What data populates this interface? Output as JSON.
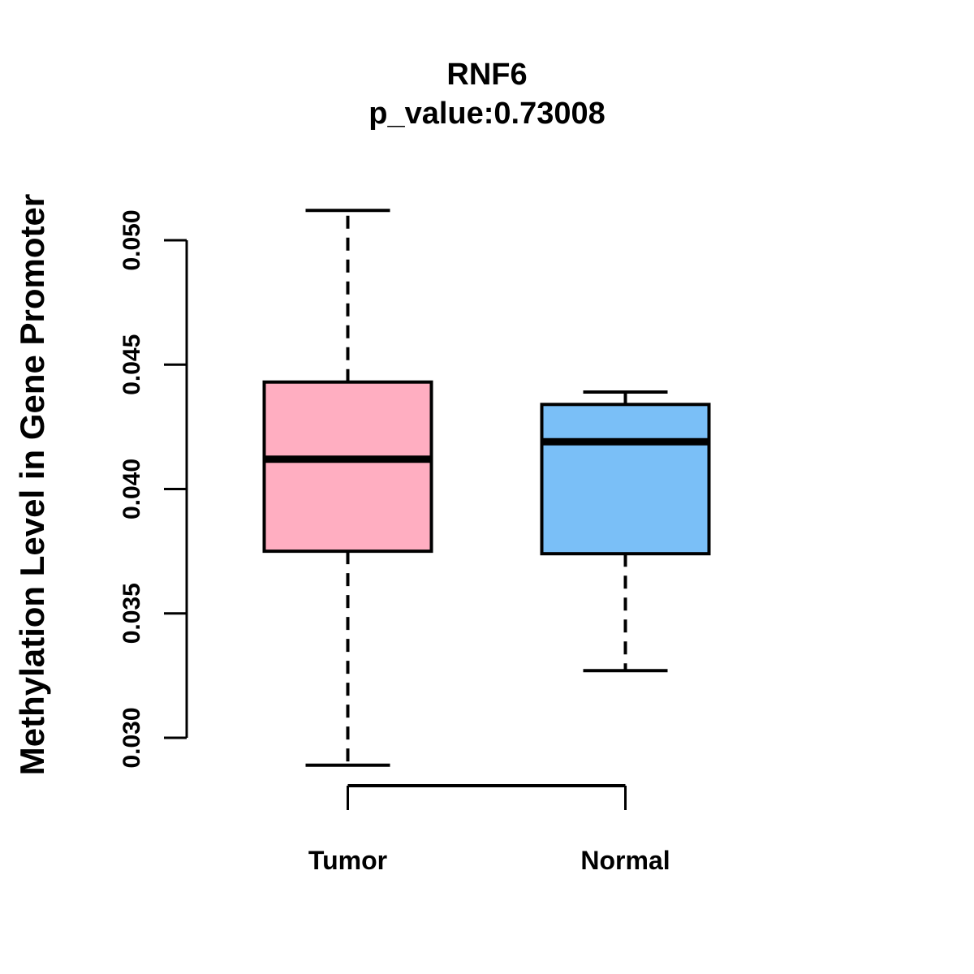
{
  "chart_data": {
    "type": "box",
    "title": "RNF6",
    "subtitle": "p_value:0.73008",
    "ylabel": "Methylation Level in Gene Promoter",
    "xlabel": "",
    "categories": [
      "Tumor",
      "Normal"
    ],
    "y_tick_labels": [
      "0.030",
      "0.035",
      "0.040",
      "0.045",
      "0.050"
    ],
    "y_axis_range": [
      0.03,
      0.05
    ],
    "grid": false,
    "legend": "none",
    "series": [
      {
        "name": "Tumor",
        "fill_color": "#FFAEC1",
        "whisker_low": 0.0289,
        "q1": 0.0375,
        "median": 0.0412,
        "q3": 0.0443,
        "whisker_high": 0.0512
      },
      {
        "name": "Normal",
        "fill_color": "#7ABFF7",
        "whisker_low": 0.0327,
        "q1": 0.0374,
        "median": 0.0419,
        "q3": 0.0434,
        "whisker_high": 0.0439
      }
    ],
    "colors": {
      "axis": "#000000",
      "text": "#000000"
    }
  }
}
